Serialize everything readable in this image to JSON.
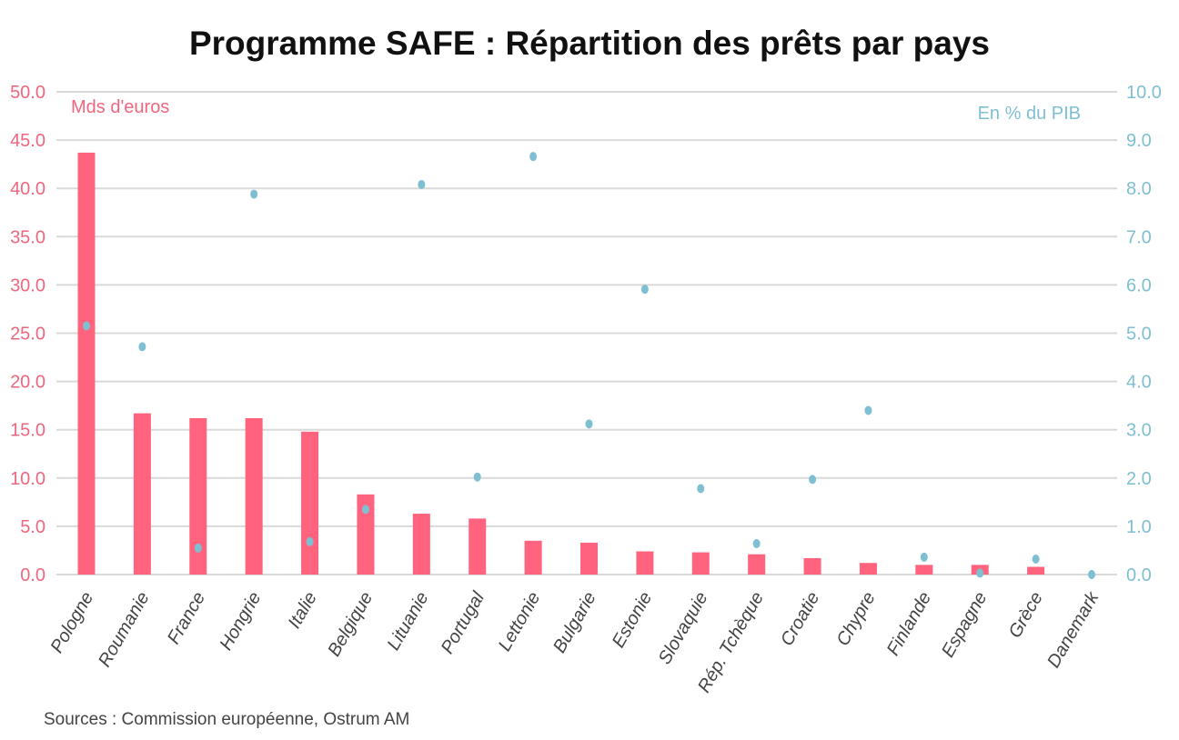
{
  "chart_data": {
    "type": "bar+scatter",
    "title": "Programme SAFE : Répartition des prêts par pays",
    "source": "Sources : Commission européenne,  Ostrum AM",
    "categories": [
      "Pologne",
      "Roumanie",
      "France",
      "Hongrie",
      "Italie",
      "Belgique",
      "Lituanie",
      "Portugal",
      "Lettonie",
      "Bulgarie",
      "Estonie",
      "Slovaquie",
      "Rép. Tchèque",
      "Croatie",
      "Chypre",
      "Finlande",
      "Espagne",
      "Grèce",
      "Danemark"
    ],
    "series": [
      {
        "name": "Mds d'euros",
        "type": "bar",
        "axis": "left",
        "color": "#ff637d",
        "values": [
          43.7,
          16.7,
          16.2,
          16.2,
          14.8,
          8.3,
          6.3,
          5.8,
          3.5,
          3.3,
          2.4,
          2.3,
          2.1,
          1.7,
          1.2,
          1.0,
          1.0,
          0.8,
          0.0
        ]
      },
      {
        "name": "En % du PIB",
        "type": "scatter",
        "axis": "right",
        "color": "#7fbfd2",
        "values": [
          5.15,
          4.72,
          0.55,
          7.88,
          0.68,
          1.35,
          8.08,
          2.02,
          8.66,
          3.12,
          5.91,
          1.78,
          0.64,
          1.97,
          3.4,
          0.36,
          0.03,
          0.32,
          0.0
        ]
      }
    ],
    "left_axis": {
      "label": "Mds d'euros",
      "ylim": [
        0,
        50
      ],
      "ticks": [
        "0.0",
        "5.0",
        "10.0",
        "15.0",
        "20.0",
        "25.0",
        "30.0",
        "35.0",
        "40.0",
        "45.0",
        "50.0"
      ]
    },
    "right_axis": {
      "label": "En % du PIB",
      "ylim": [
        0,
        10
      ],
      "ticks": [
        "0.0",
        "1.0",
        "2.0",
        "3.0",
        "4.0",
        "5.0",
        "6.0",
        "7.0",
        "8.0",
        "9.0",
        "10.0"
      ]
    },
    "grid": true,
    "legend": "none"
  }
}
